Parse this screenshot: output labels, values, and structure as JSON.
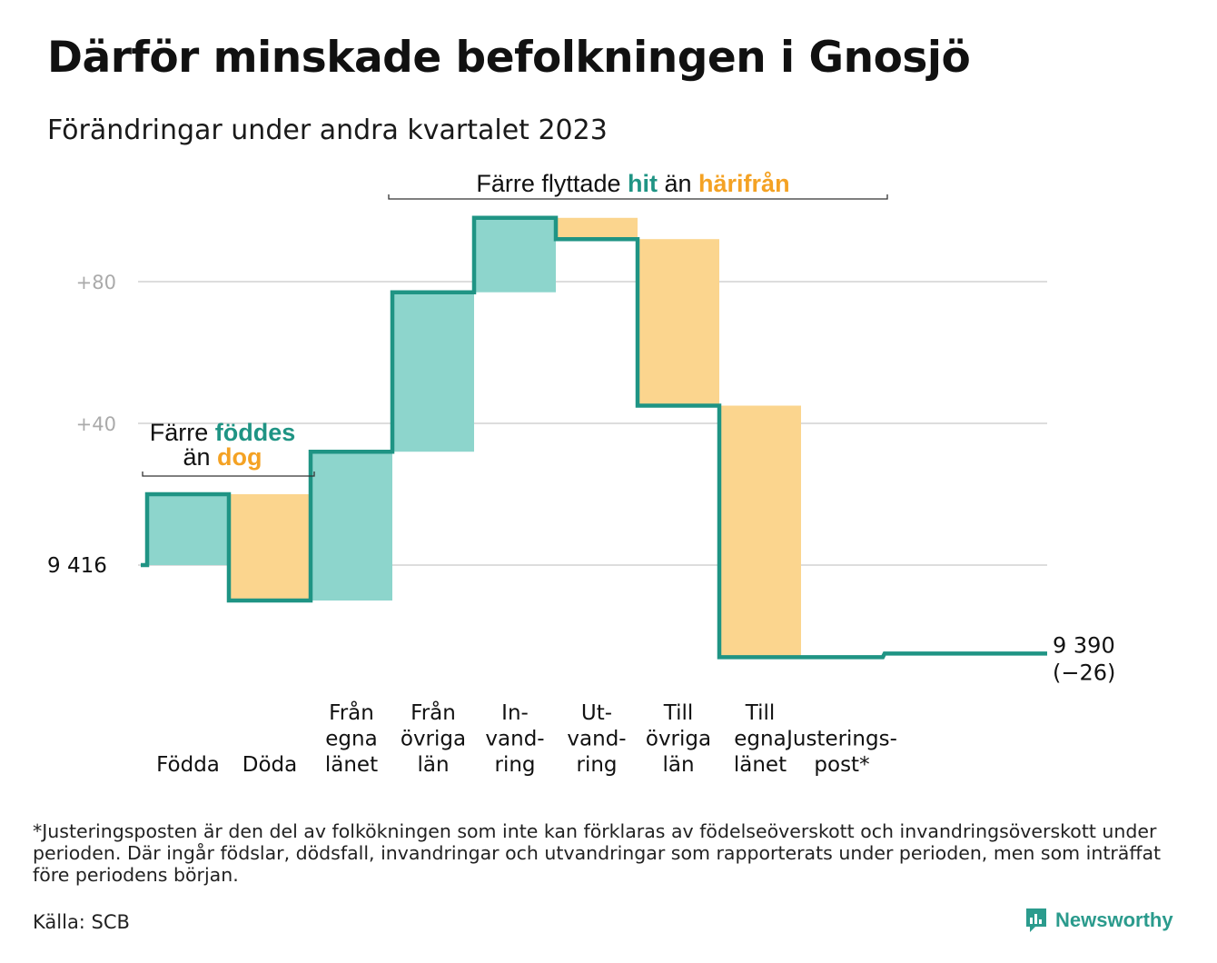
{
  "title": "Därför minskade befolkningen i Gnosjö",
  "subtitle": "Förändringar under andra kvartalet 2023",
  "chart_data": {
    "type": "waterfall",
    "start_value": 9416,
    "start_label": "9  416",
    "end_label_value": "9 390",
    "end_label_change": "(−26)",
    "y_ticks": [
      {
        "value": 80,
        "label": "+80"
      },
      {
        "value": 40,
        "label": "+40"
      }
    ],
    "ylim": [
      -40,
      112
    ],
    "grid": true,
    "steps": [
      {
        "label": [
          "Födda"
        ],
        "change": 20,
        "kind": "in"
      },
      {
        "label": [
          "Döda"
        ],
        "change": -30,
        "kind": "out"
      },
      {
        "label": [
          "Från",
          "egna",
          "länet"
        ],
        "change": 42,
        "kind": "in"
      },
      {
        "label": [
          "Från",
          "övriga",
          "län"
        ],
        "change": 45,
        "kind": "in"
      },
      {
        "label": [
          "In-",
          "vand-",
          "ring"
        ],
        "change": 21,
        "kind": "in"
      },
      {
        "label": [
          "Ut-",
          "vand-",
          "ring"
        ],
        "change": -6,
        "kind": "out"
      },
      {
        "label": [
          "Till",
          "övriga",
          "län"
        ],
        "change": -47,
        "kind": "out"
      },
      {
        "label": [
          "Till",
          "egna",
          "länet"
        ],
        "change": -71,
        "kind": "out"
      },
      {
        "label": [
          "Justerings-",
          "post*"
        ],
        "change": 0,
        "kind": "adjust"
      }
    ],
    "annotations": [
      {
        "parts": [
          {
            "text": "Färre flyttade ",
            "style": "plain"
          },
          {
            "text": "hit",
            "style": "in"
          },
          {
            "text": " än ",
            "style": "plain"
          },
          {
            "text": "härifrån",
            "style": "out"
          }
        ]
      },
      {
        "line1": [
          {
            "text": "Färre ",
            "style": "plain"
          },
          {
            "text": "föddes",
            "style": "in"
          }
        ],
        "line2": [
          {
            "text": "än ",
            "style": "plain"
          },
          {
            "text": "dog",
            "style": "out"
          }
        ]
      }
    ],
    "colors": {
      "in_fill": "#8dd5cc",
      "out_fill": "#fbd58e",
      "line": "#1f9484",
      "in_text": "#1f9484",
      "out_text": "#f4a224",
      "grid": "#dddddd",
      "tick_text": "#aaaaaa"
    }
  },
  "footnote": "*Justeringsposten är den del av folkökningen som inte kan förklaras av födelseöverskott och invandringsöverskott under perioden. Där ingår födslar, dödsfall, invandringar och utvandringar som rapporterats under perioden, men som inträffat före periodens början.",
  "source": "Källa: SCB",
  "brand": {
    "name": "Newsworthy",
    "icon": "newsworthy-logo-icon"
  }
}
